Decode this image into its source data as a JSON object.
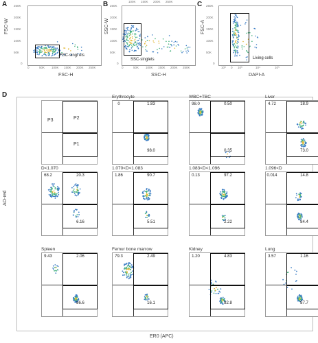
{
  "panels_top": [
    {
      "letter": "A",
      "ylabel": "FSC-W",
      "xlabel": "FSC-H",
      "gate": "FSC-singl ets",
      "yticks": [
        "250K",
        "200K",
        "150K",
        "100K",
        "50K",
        "0"
      ],
      "xticks": [
        "0",
        "50K",
        "100K",
        "150K",
        "200K",
        "250K"
      ]
    },
    {
      "letter": "B",
      "ylabel": "SSC-W",
      "xlabel": "SSC-H",
      "gate": "SSC-singlets",
      "yticks": [
        "250K",
        "200K",
        "150K",
        "100K",
        "50K",
        "0"
      ],
      "xticks": [
        "0",
        "50K",
        "100K",
        "150K",
        "200K",
        "250K"
      ]
    },
    {
      "letter": "C",
      "ylabel": "FSC-A",
      "xlabel": "DAPI-A",
      "gate": "Living cells",
      "yticks": [
        "250K",
        "200K",
        "150K",
        "100K",
        "50K",
        "0"
      ],
      "xticks": [
        "10³",
        "0",
        "10³",
        "10⁴",
        "10⁵"
      ]
    }
  ],
  "panel_d": {
    "letter": "D",
    "ylabel": "AO-red",
    "xlabel": "ER0 (APC)",
    "schematic": {
      "p3": "P3",
      "p2": "P2",
      "p1": "P1"
    },
    "plots": [
      {
        "title": "Erythrocyte",
        "ul": "0",
        "ur": "1.83",
        "lr": "98.0"
      },
      {
        "title": "WBC+TBC",
        "ul": "98.0",
        "ur": "0.50",
        "lr": "0.35"
      },
      {
        "title": "Liver",
        "ul": "4.72",
        "ur": "18.9",
        "lr": "73.0"
      },
      {
        "title": "D<1.070",
        "ul": "68.2",
        "ur": "20.3",
        "lr": "6.16"
      },
      {
        "title": "1.070<D<1.083",
        "ul": "1.86",
        "ur": "90.7",
        "lr": "5.51"
      },
      {
        "title": "1.083<D<1.096",
        "ul": "0.13",
        "ur": "97.2",
        "lr": "2.22"
      },
      {
        "title": "1.096<D",
        "ul": "0.014",
        "ur": "14.8",
        "lr": "84.4"
      },
      {
        "title": "Spleen",
        "ul": "9.43",
        "ur": "2.06",
        "lr": "86.6"
      },
      {
        "title": "Femur bone marrow",
        "ul": "79.3",
        "ur": "2.49",
        "lr": "16.1"
      },
      {
        "title": "Kidney",
        "ul": "1.20",
        "ur": "4.83",
        "lr": "82.8"
      },
      {
        "title": "Lung",
        "ul": "3.57",
        "ur": "1.16",
        "lr": "87.7"
      }
    ]
  }
}
